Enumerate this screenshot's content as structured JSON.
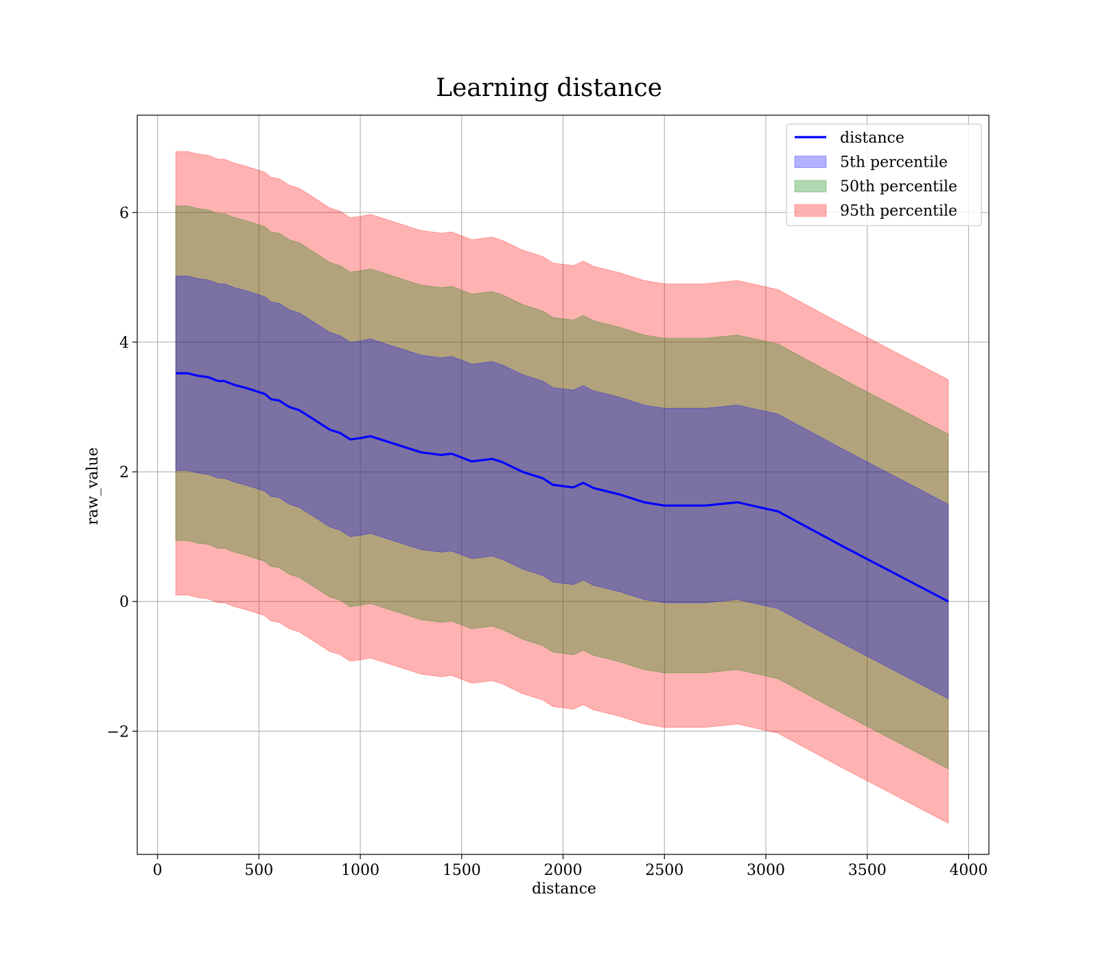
{
  "chart_data": {
    "type": "area",
    "title": "Learning distance",
    "xlabel": "distance",
    "ylabel": "raw_value",
    "xlim": [
      -100,
      4100
    ],
    "ylim": [
      -3.9,
      7.5
    ],
    "xticks": [
      0,
      500,
      1000,
      1500,
      2000,
      2500,
      3000,
      3500,
      4000
    ],
    "xtick_labels": [
      "0",
      "500",
      "1000",
      "1500",
      "2000",
      "2500",
      "3000",
      "3500",
      "4000"
    ],
    "yticks": [
      -2,
      0,
      2,
      4,
      6
    ],
    "ytick_labels": [
      "−2",
      "0",
      "2",
      "4",
      "6"
    ],
    "grid": true,
    "legend_position": "top-right",
    "x": [
      90,
      150,
      200,
      250,
      300,
      330,
      380,
      430,
      480,
      530,
      560,
      600,
      650,
      700,
      750,
      800,
      850,
      900,
      950,
      1000,
      1050,
      1100,
      1150,
      1200,
      1300,
      1400,
      1450,
      1500,
      1550,
      1650,
      1700,
      1800,
      1900,
      1950,
      2050,
      2100,
      2150,
      2280,
      2400,
      2500,
      2700,
      2860,
      3060,
      3380,
      3900
    ],
    "series": [
      {
        "name": "distance",
        "kind": "line",
        "color": "#0000ff",
        "values": [
          3.52,
          3.52,
          3.48,
          3.46,
          3.4,
          3.4,
          3.34,
          3.3,
          3.25,
          3.2,
          3.12,
          3.1,
          3.0,
          2.95,
          2.85,
          2.75,
          2.65,
          2.6,
          2.5,
          2.52,
          2.55,
          2.5,
          2.45,
          2.4,
          2.3,
          2.26,
          2.28,
          2.22,
          2.16,
          2.2,
          2.15,
          2.0,
          1.9,
          1.8,
          1.76,
          1.83,
          1.75,
          1.65,
          1.53,
          1.48,
          1.48,
          1.53,
          1.39,
          0.85,
          0.0
        ]
      },
      {
        "name": "5th percentile",
        "kind": "band",
        "color": "#0000ff",
        "offset": 1.5
      },
      {
        "name": "50th percentile",
        "kind": "band",
        "color": "#008000",
        "offset": 2.58
      },
      {
        "name": "95th percentile",
        "kind": "band",
        "color": "#ff0000",
        "offset": 3.42
      }
    ]
  }
}
